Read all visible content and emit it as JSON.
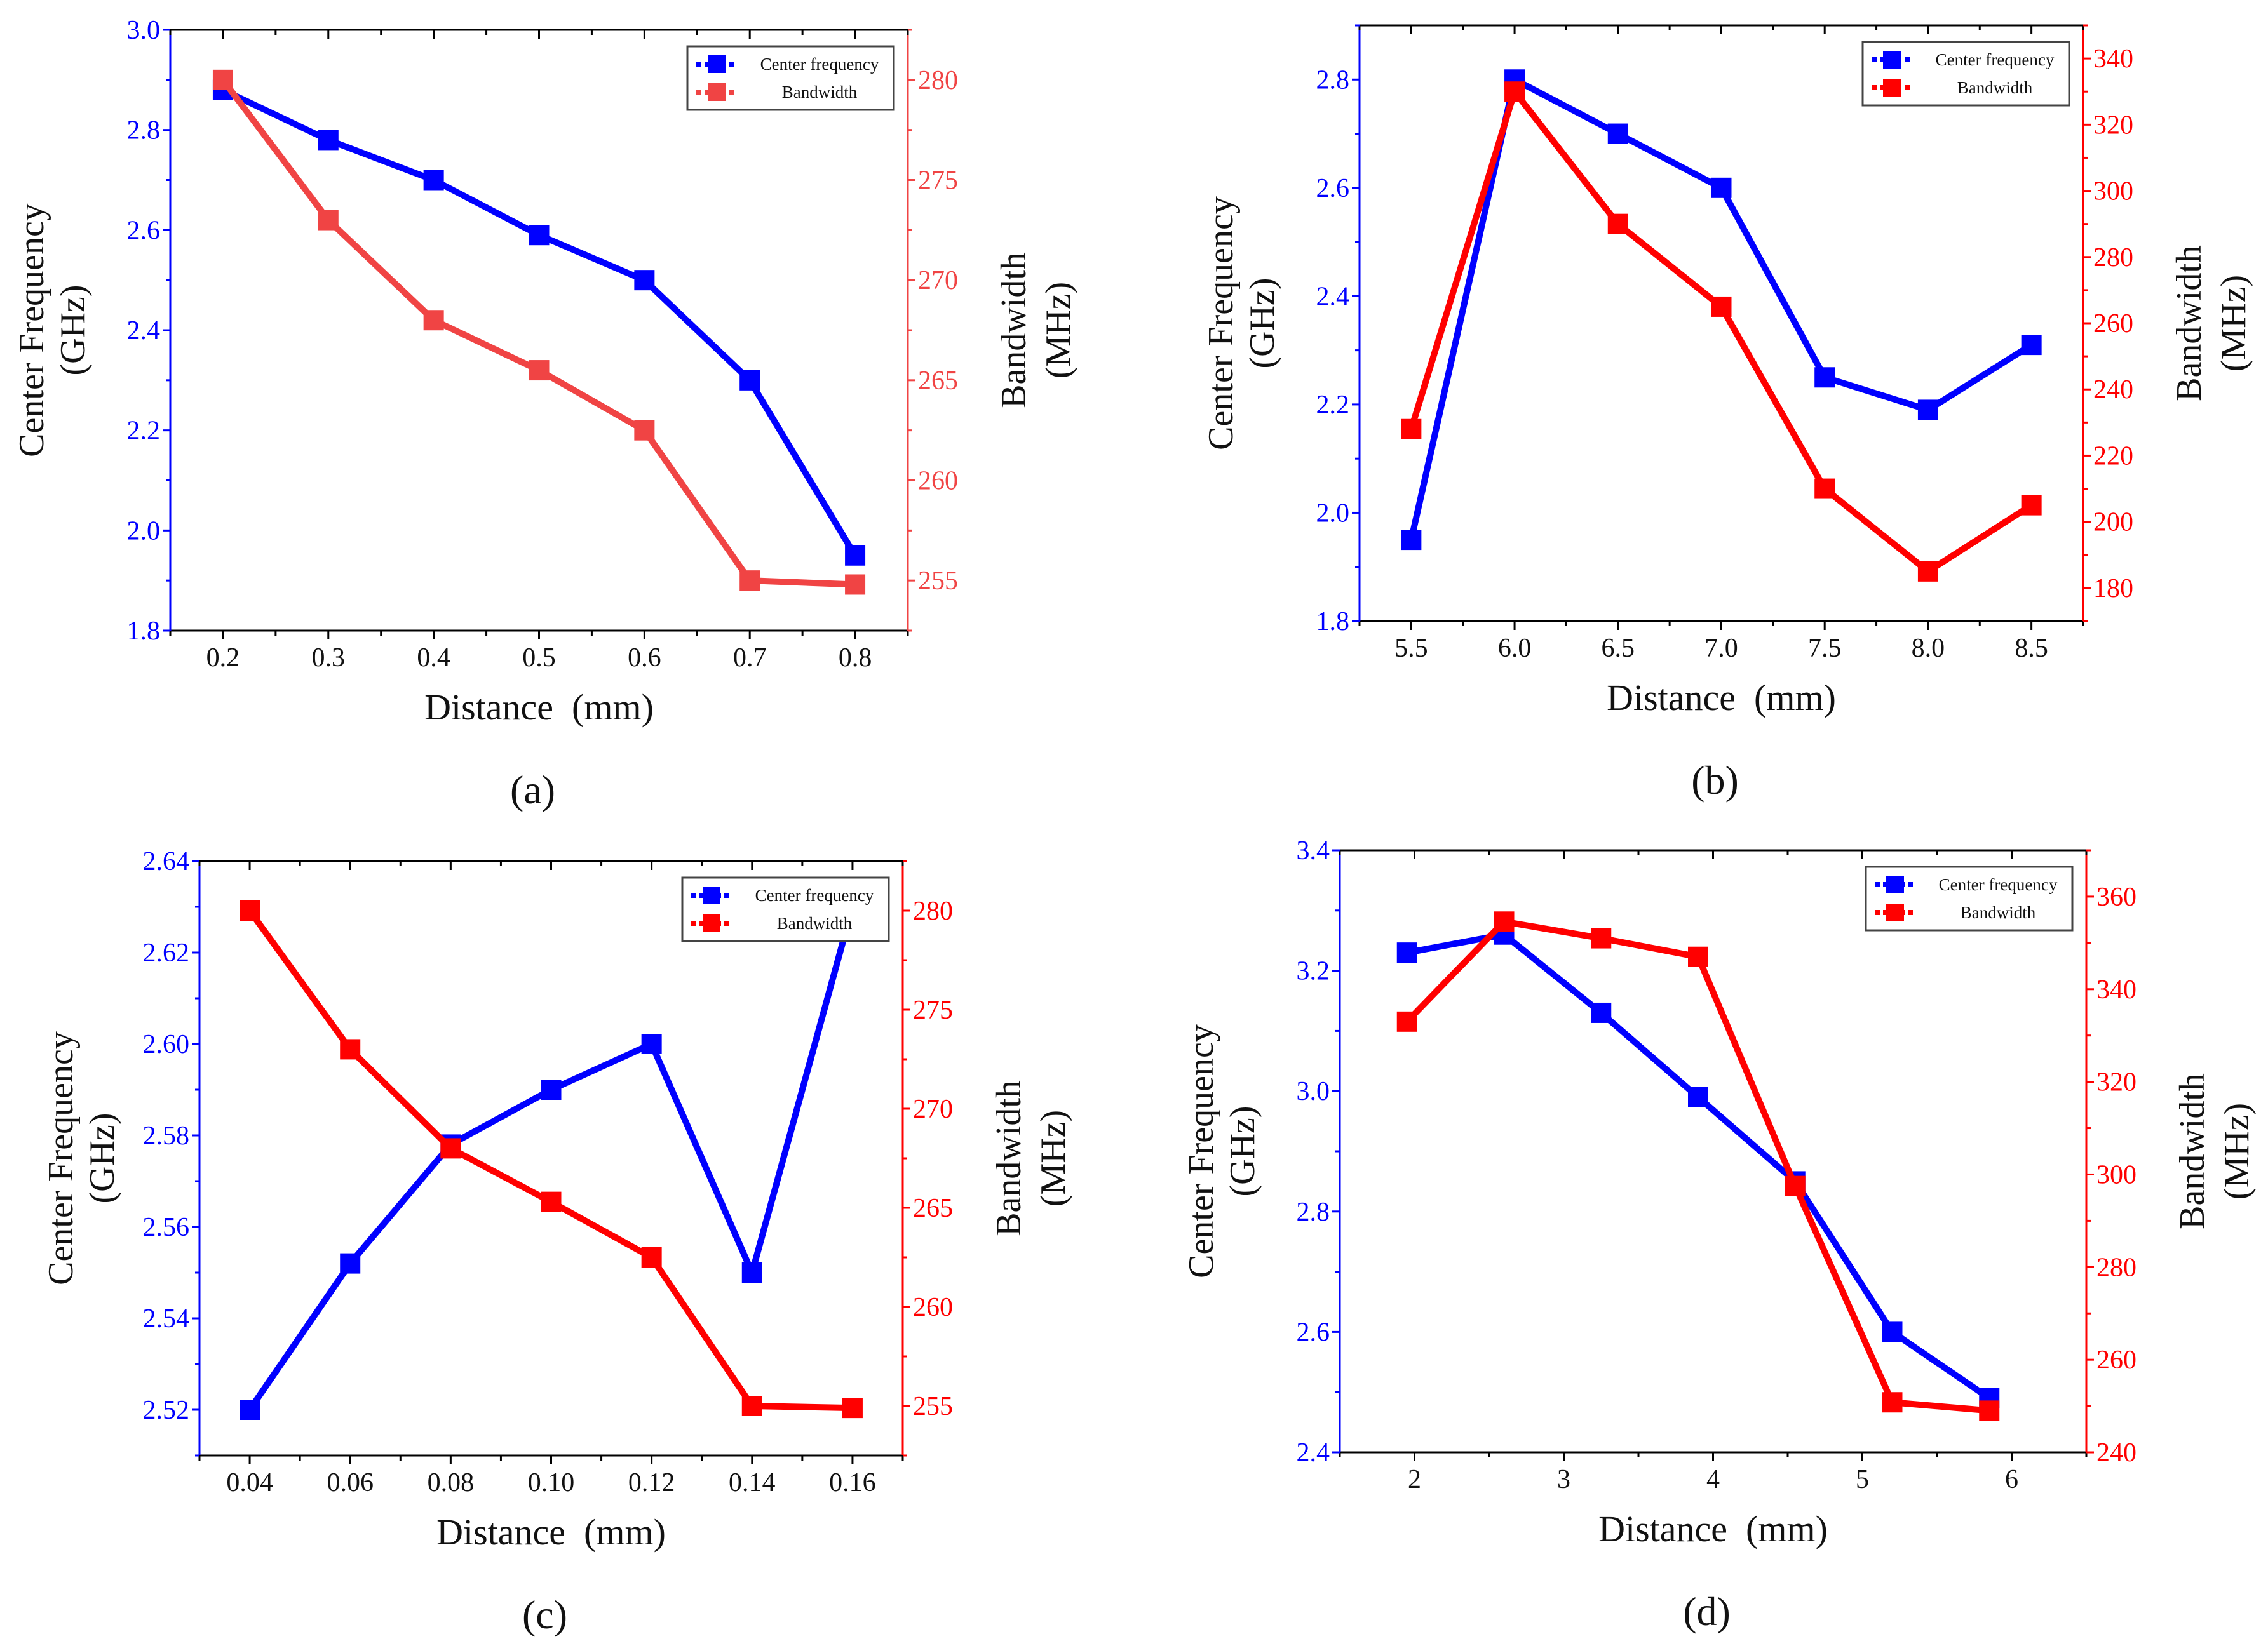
{
  "colors": {
    "left": "#0000ff",
    "right": "#ff0000",
    "right_a": "#f04444",
    "axis": "#000000"
  },
  "chart_data": [
    {
      "type": "line",
      "panel_label": "(a)",
      "xlabel": "Distance  (mm)",
      "ylabel": [
        "Center Frequency",
        "(GHz)"
      ],
      "y2label": [
        "Bandwidth",
        "(MHz)"
      ],
      "xlim": [
        0.15,
        0.85
      ],
      "ylim": [
        1.8,
        3.0
      ],
      "y2lim": [
        252.5,
        282.5
      ],
      "xticks": [
        0.2,
        0.3,
        0.4,
        0.5,
        0.6,
        0.7,
        0.8
      ],
      "xticklabels": [
        "0.2",
        "0.3",
        "0.4",
        "0.5",
        "0.6",
        "0.7",
        "0.8"
      ],
      "yticks": [
        1.8,
        2.0,
        2.2,
        2.4,
        2.6,
        2.8,
        3.0
      ],
      "yticklabels": [
        "1.8",
        "2.0",
        "2.2",
        "2.4",
        "2.6",
        "2.8",
        "3.0"
      ],
      "y2ticks": [
        255,
        260,
        265,
        270,
        275,
        280
      ],
      "y2ticklabels": [
        "255",
        "260",
        "265",
        "270",
        "275",
        "280"
      ],
      "x": [
        0.2,
        0.3,
        0.4,
        0.5,
        0.6,
        0.7,
        0.8
      ],
      "series": [
        {
          "name": "Center frequency",
          "axis": "left",
          "values": [
            2.88,
            2.78,
            2.7,
            2.59,
            2.5,
            2.3,
            1.95
          ]
        },
        {
          "name": "Bandwidth",
          "axis": "right",
          "values": [
            280,
            273,
            268,
            265.5,
            262.5,
            255,
            254.8
          ]
        }
      ],
      "legend": "top-right"
    },
    {
      "type": "line",
      "panel_label": "(b)",
      "xlabel": "Distance  (mm)",
      "ylabel": [
        "Center Frequency",
        "(GHz)"
      ],
      "y2label": [
        "Bandwidth",
        "(MHz)"
      ],
      "xlim": [
        5.25,
        8.75
      ],
      "ylim": [
        1.8,
        2.9
      ],
      "y2lim": [
        170,
        350
      ],
      "xticks": [
        5.5,
        6.0,
        6.5,
        7.0,
        7.5,
        8.0,
        8.5
      ],
      "xticklabels": [
        "5.5",
        "6.0",
        "6.5",
        "7.0",
        "7.5",
        "8.0",
        "8.5"
      ],
      "yticks": [
        1.8,
        2.0,
        2.2,
        2.4,
        2.6,
        2.8
      ],
      "yticklabels": [
        "1.8",
        "2.0",
        "2.2",
        "2.4",
        "2.6",
        "2.8"
      ],
      "y2ticks": [
        180,
        200,
        220,
        240,
        260,
        280,
        300,
        320,
        340
      ],
      "y2ticklabels": [
        "180",
        "200",
        "220",
        "240",
        "260",
        "280",
        "300",
        "320",
        "340"
      ],
      "x": [
        5.5,
        6.0,
        6.5,
        7.0,
        7.5,
        8.0,
        8.5
      ],
      "series": [
        {
          "name": "Center frequency",
          "axis": "left",
          "values": [
            1.95,
            2.8,
            2.7,
            2.6,
            2.25,
            2.19,
            2.31
          ]
        },
        {
          "name": "Bandwidth",
          "axis": "right",
          "values": [
            228,
            330,
            290,
            265,
            210,
            185,
            205
          ]
        }
      ],
      "legend": "top-right"
    },
    {
      "type": "line",
      "panel_label": "(c)",
      "xlabel": "Distance  (mm)",
      "ylabel": [
        "Center Frequency",
        "(GHz)"
      ],
      "y2label": [
        "Bandwidth",
        "(MHz)"
      ],
      "xlim": [
        0.03,
        0.17
      ],
      "ylim": [
        2.51,
        2.64
      ],
      "y2lim": [
        252.5,
        282.5
      ],
      "xticks": [
        0.04,
        0.06,
        0.08,
        0.1,
        0.12,
        0.14,
        0.16
      ],
      "xticklabels": [
        "0.04",
        "0.06",
        "0.08",
        "0.10",
        "0.12",
        "0.14",
        "0.16"
      ],
      "yticks": [
        2.52,
        2.54,
        2.56,
        2.58,
        2.6,
        2.62,
        2.64
      ],
      "yticklabels": [
        "2.52",
        "2.54",
        "2.56",
        "2.58",
        "2.60",
        "2.62",
        "2.64"
      ],
      "y2ticks": [
        255,
        260,
        265,
        270,
        275,
        280
      ],
      "y2ticklabels": [
        "255",
        "260",
        "265",
        "270",
        "275",
        "280"
      ],
      "x": [
        0.04,
        0.06,
        0.08,
        0.1,
        0.12,
        0.14,
        0.16
      ],
      "series": [
        {
          "name": "Center frequency",
          "axis": "left",
          "values": [
            2.52,
            2.552,
            2.578,
            2.59,
            2.6,
            2.55,
            2.63
          ]
        },
        {
          "name": "Bandwidth",
          "axis": "right",
          "values": [
            280,
            273,
            268,
            265.3,
            262.5,
            255,
            254.9
          ]
        }
      ],
      "legend": "top-right"
    },
    {
      "type": "line",
      "panel_label": "(d)",
      "xlabel": "Distance  (mm)",
      "ylabel": [
        "Center Frequency",
        "(GHz)"
      ],
      "y2label": [
        "Bandwidth",
        "(MHz)"
      ],
      "xlim": [
        1.5,
        6.5
      ],
      "ylim": [
        2.4,
        3.4
      ],
      "y2lim": [
        240,
        370
      ],
      "xticks": [
        2,
        3,
        4,
        5,
        6
      ],
      "xticklabels": [
        "2",
        "3",
        "4",
        "5",
        "6"
      ],
      "yticks": [
        2.4,
        2.6,
        2.8,
        3.0,
        3.2,
        3.4
      ],
      "yticklabels": [
        "2.4",
        "2.6",
        "2.8",
        "3.0",
        "3.2",
        "3.4"
      ],
      "y2ticks": [
        240,
        260,
        280,
        300,
        320,
        340,
        360
      ],
      "y2ticklabels": [
        "240",
        "260",
        "280",
        "300",
        "320",
        "340",
        "360"
      ],
      "x": [
        1.95,
        2.6,
        3.25,
        3.9,
        4.55,
        5.2,
        5.85
      ],
      "series": [
        {
          "name": "Center frequency",
          "axis": "left",
          "values": [
            3.23,
            3.26,
            3.13,
            2.99,
            2.85,
            2.6,
            2.49
          ]
        },
        {
          "name": "Bandwidth",
          "axis": "right",
          "values": [
            333,
            354.6,
            351,
            347,
            297.5,
            250.8,
            249
          ]
        }
      ],
      "legend": "top-right"
    }
  ]
}
